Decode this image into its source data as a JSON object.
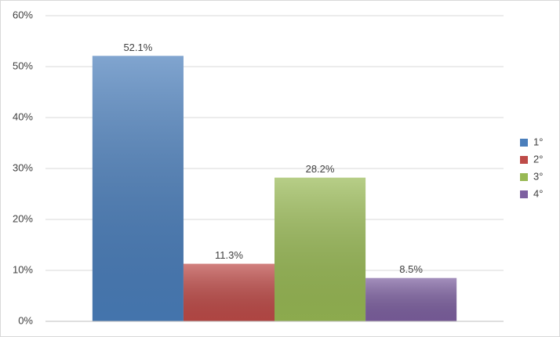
{
  "chart_data": {
    "type": "bar",
    "categories": [
      null
    ],
    "series": [
      {
        "name": "1°",
        "color": "#4a7ebb",
        "values": [
          52.1
        ],
        "value_labels": [
          "52.1%"
        ]
      },
      {
        "name": "2°",
        "color": "#be4b48",
        "values": [
          11.3
        ],
        "value_labels": [
          "11.3%"
        ]
      },
      {
        "name": "3°",
        "color": "#98b954",
        "values": [
          28.2
        ],
        "value_labels": [
          "28.2%"
        ]
      },
      {
        "name": "4°",
        "color": "#7d60a0",
        "values": [
          8.5
        ],
        "value_labels": [
          "8.5%"
        ]
      }
    ],
    "ylim": [
      0,
      60
    ],
    "yticks": [
      {
        "value": 0,
        "label": "0%"
      },
      {
        "value": 10,
        "label": "10%"
      },
      {
        "value": 20,
        "label": "20%"
      },
      {
        "value": 30,
        "label": "30%"
      },
      {
        "value": 40,
        "label": "40%"
      },
      {
        "value": 50,
        "label": "50%"
      },
      {
        "value": 60,
        "label": "60%"
      }
    ],
    "grid": true,
    "legend": "right"
  }
}
